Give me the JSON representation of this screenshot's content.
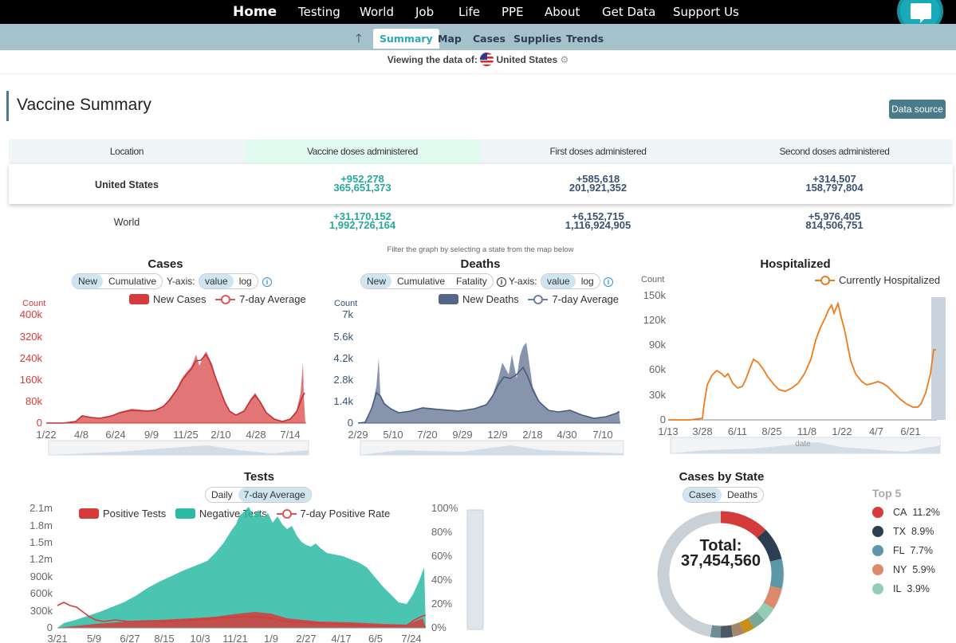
{
  "nav": {
    "items": [
      "Home",
      "Testing",
      "World",
      "Job",
      "Life",
      "PPE",
      "About",
      "Get Data",
      "Support Us"
    ]
  },
  "subnav": {
    "tabs": [
      "Summary",
      "Map",
      "Cases",
      "Supplies",
      "Trends"
    ],
    "active": "Summary"
  },
  "viewing": {
    "label": "Viewing the data of:",
    "country": "United States"
  },
  "vaccine": {
    "title": "Vaccine Summary",
    "data_source": "Data source",
    "headers": [
      "Location",
      "Vaccine doses administered",
      "First doses administered",
      "Second doses administered"
    ],
    "rows": [
      {
        "location": "United States",
        "total_delta": "+952,278",
        "total": "365,651,373",
        "first_delta": "+585,618",
        "first": "201,921,352",
        "second_delta": "+314,507",
        "second": "158,797,804"
      },
      {
        "location": "World",
        "total_delta": "+31,170,152",
        "total": "1,992,726,164",
        "first_delta": "+6,152,715",
        "first": "1,116,924,905",
        "second_delta": "+5,976,405",
        "second": "814,506,751"
      }
    ]
  },
  "filter_note": "Filter the graph by selecting a state from the map below",
  "cases_chart": {
    "title": "Cases",
    "modes": [
      "New",
      "Cumulative"
    ],
    "yaxis_label": "Y-axis:",
    "scales": [
      "value",
      "log"
    ],
    "legend": [
      "New Cases",
      "7-day Average"
    ],
    "count_label": "Count",
    "yticks": [
      "400k",
      "320k",
      "240k",
      "160k",
      "80k",
      "0"
    ],
    "xticks": [
      "1/22",
      "4/8",
      "6/24",
      "9/9",
      "11/25",
      "2/10",
      "4/28",
      "7/14"
    ]
  },
  "deaths_chart": {
    "title": "Deaths",
    "modes": [
      "New",
      "Cumulative",
      "Fatality"
    ],
    "yaxis_label": "Y-axis:",
    "scales": [
      "value",
      "log"
    ],
    "legend": [
      "New Deaths",
      "7-day Average"
    ],
    "count_label": "Count",
    "yticks": [
      "7k",
      "5.6k",
      "4.2k",
      "2.8k",
      "1.4k",
      "0"
    ],
    "xticks": [
      "2/29",
      "5/10",
      "7/20",
      "9/29",
      "12/9",
      "2/18",
      "4/30",
      "7/10"
    ]
  },
  "hosp_chart": {
    "title": "Hospitalized",
    "legend": [
      "Currently Hospitalized"
    ],
    "count_label": "Count",
    "yticks": [
      "150k",
      "120k",
      "90k",
      "60k",
      "30k",
      "0"
    ],
    "xticks": [
      "1/13",
      "3/28",
      "6/11",
      "8/25",
      "11/8",
      "1/22",
      "4/7",
      "6/21"
    ],
    "xlabel": "date"
  },
  "tests_chart": {
    "title": "Tests",
    "modes": [
      "Daily",
      "7-day Average"
    ],
    "legend": [
      "Positive Tests",
      "Negative Tests",
      "7-day Positive Rate"
    ],
    "yticks": [
      "2.1m",
      "1.8m",
      "1.5m",
      "1.2m",
      "900k",
      "600k",
      "300k",
      "0"
    ],
    "y2ticks": [
      "100%",
      "80%",
      "60%",
      "40%",
      "20%",
      "0%"
    ],
    "xticks": [
      "3/21",
      "5/9",
      "6/27",
      "8/15",
      "10/3",
      "11/21",
      "1/9",
      "2/27",
      "4/17",
      "6/5",
      "7/24"
    ]
  },
  "state_chart": {
    "title": "Cases by State",
    "modes": [
      "Cases",
      "Deaths"
    ],
    "total_label": "Total:",
    "total": "37,454,560",
    "top5_title": "Top 5",
    "top5": [
      {
        "state": "CA",
        "pct": "11.2%",
        "color": "#d63b3b"
      },
      {
        "state": "TX",
        "pct": "8.9%",
        "color": "#2c3e50"
      },
      {
        "state": "FL",
        "pct": "7.7%",
        "color": "#5b97a6"
      },
      {
        "state": "NY",
        "pct": "5.9%",
        "color": "#dd8a6a"
      },
      {
        "state": "IL",
        "pct": "3.9%",
        "color": "#93cdb6"
      }
    ]
  },
  "colors": {
    "accent": "#2aa8b4",
    "cases": "#d63b3b",
    "deaths": "#556688",
    "hosp": "#f07a1a",
    "negative": "#2cbaa5"
  }
}
